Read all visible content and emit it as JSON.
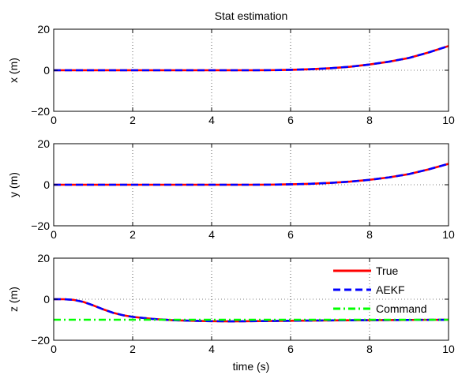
{
  "chart_data": {
    "title": "Stat estimation",
    "xlabel": "time (s)",
    "grid": true,
    "legend_location": "bottom-right of third subplot",
    "legend": [
      {
        "label": "True",
        "color": "#ff0000",
        "style": "solid"
      },
      {
        "label": "AEKF",
        "color": "#0000ff",
        "style": "dashed"
      },
      {
        "label": "Command",
        "color": "#00ff00",
        "style": "dashdot"
      }
    ],
    "subplots": [
      {
        "type": "line",
        "ylabel": "x (m)",
        "xlim": [
          0,
          10
        ],
        "ylim": [
          -20,
          20
        ],
        "xticks": [
          0,
          2,
          4,
          6,
          8,
          10
        ],
        "yticks": [
          -20,
          0,
          20
        ],
        "series": [
          {
            "name": "True",
            "color": "#ff0000",
            "style": "solid",
            "x": [
              0,
              1,
              2,
              3,
              4,
              5,
              5.5,
              6,
              6.5,
              7,
              7.5,
              8,
              8.5,
              9,
              9.5,
              10
            ],
            "y": [
              0,
              0,
              0,
              0,
              0,
              0,
              0.05,
              0.2,
              0.5,
              1.0,
              1.7,
              2.8,
              4.2,
              6.0,
              8.7,
              11.8
            ]
          },
          {
            "name": "AEKF",
            "color": "#0000ff",
            "style": "dashed",
            "x": [
              0,
              1,
              2,
              3,
              4,
              5,
              5.5,
              6,
              6.5,
              7,
              7.5,
              8,
              8.5,
              9,
              9.5,
              10
            ],
            "y": [
              0,
              0,
              0,
              0,
              0,
              0,
              0.05,
              0.2,
              0.5,
              1.0,
              1.7,
              2.8,
              4.2,
              6.0,
              8.7,
              11.8
            ]
          }
        ]
      },
      {
        "type": "line",
        "ylabel": "y (m)",
        "xlim": [
          0,
          10
        ],
        "ylim": [
          -20,
          20
        ],
        "xticks": [
          0,
          2,
          4,
          6,
          8,
          10
        ],
        "yticks": [
          -20,
          0,
          20
        ],
        "series": [
          {
            "name": "True",
            "color": "#ff0000",
            "style": "solid",
            "x": [
              0,
              1,
              2,
              3,
              4,
              5,
              5.5,
              6,
              6.5,
              7,
              7.5,
              8,
              8.5,
              9,
              9.5,
              10
            ],
            "y": [
              0,
              0,
              0,
              0,
              0,
              0,
              0.05,
              0.2,
              0.45,
              0.9,
              1.5,
              2.4,
              3.6,
              5.2,
              7.5,
              10.2
            ]
          },
          {
            "name": "AEKF",
            "color": "#0000ff",
            "style": "dashed",
            "x": [
              0,
              1,
              2,
              3,
              4,
              5,
              5.5,
              6,
              6.5,
              7,
              7.5,
              8,
              8.5,
              9,
              9.5,
              10
            ],
            "y": [
              0,
              0,
              0,
              0,
              0,
              0,
              0.05,
              0.2,
              0.45,
              0.9,
              1.5,
              2.4,
              3.6,
              5.2,
              7.5,
              10.2
            ]
          }
        ]
      },
      {
        "type": "line",
        "ylabel": "z (m)",
        "xlim": [
          0,
          10
        ],
        "ylim": [
          -20,
          20
        ],
        "xticks": [
          0,
          2,
          4,
          6,
          8,
          10
        ],
        "yticks": [
          -20,
          0,
          20
        ],
        "series": [
          {
            "name": "True",
            "color": "#ff0000",
            "style": "solid",
            "x": [
              0,
              0.25,
              0.5,
              0.75,
              1,
              1.25,
              1.5,
              1.75,
              2,
              2.5,
              3,
              3.5,
              4,
              4.5,
              5,
              6,
              7,
              8,
              9,
              10
            ],
            "y": [
              0,
              0,
              -0.3,
              -1.3,
              -3.0,
              -4.9,
              -6.6,
              -7.8,
              -8.6,
              -9.6,
              -10.2,
              -10.5,
              -10.7,
              -10.8,
              -10.7,
              -10.5,
              -10.3,
              -10.2,
              -10.1,
              -10.0
            ]
          },
          {
            "name": "AEKF",
            "color": "#0000ff",
            "style": "dashed",
            "x": [
              0,
              0.25,
              0.5,
              0.75,
              1,
              1.25,
              1.5,
              1.75,
              2,
              2.5,
              3,
              3.5,
              4,
              4.5,
              5,
              6,
              7,
              8,
              9,
              10
            ],
            "y": [
              0,
              0,
              -0.3,
              -1.3,
              -3.0,
              -4.9,
              -6.6,
              -7.8,
              -8.6,
              -9.6,
              -10.2,
              -10.5,
              -10.7,
              -10.8,
              -10.7,
              -10.5,
              -10.3,
              -10.2,
              -10.1,
              -10.0
            ]
          },
          {
            "name": "Command",
            "color": "#00ff00",
            "style": "dashdot",
            "x": [
              0,
              10
            ],
            "y": [
              -10,
              -10
            ]
          }
        ]
      }
    ]
  }
}
